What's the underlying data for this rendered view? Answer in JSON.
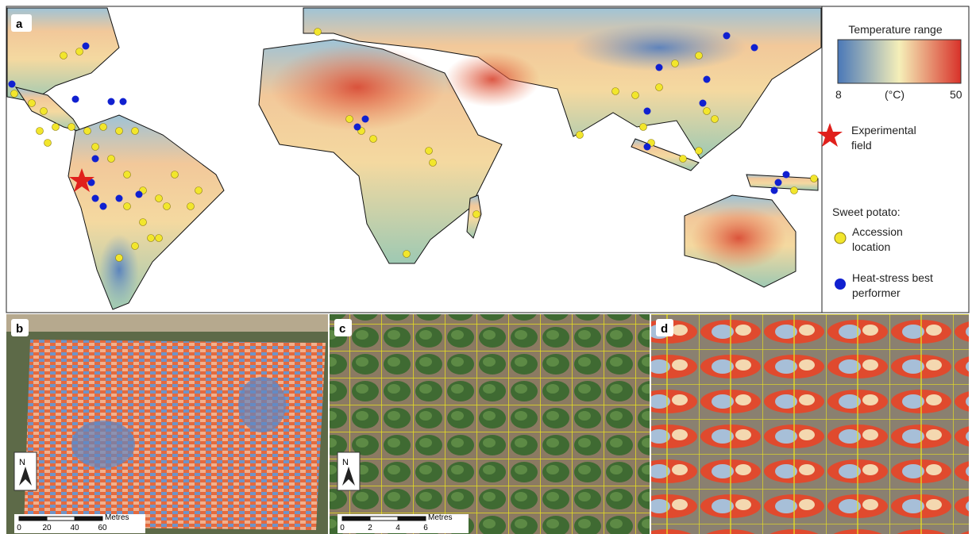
{
  "panels": {
    "a": "a",
    "b": "b",
    "c": "c",
    "d": "d"
  },
  "legend": {
    "title": "Temperature range",
    "scale_min": 8,
    "scale_unit": "(°C)",
    "scale_max": 50,
    "star_label": "Experimental field",
    "section_title": "Sweet potato:",
    "items": [
      "Accession location",
      "Heat-stress best performer"
    ]
  },
  "scale_bars": {
    "b": {
      "ticks": [
        0,
        20,
        40,
        60
      ],
      "unit": "Metres"
    },
    "c": {
      "ticks": [
        0,
        2,
        4,
        6
      ],
      "unit": "Metres"
    }
  },
  "north_label": "N"
}
